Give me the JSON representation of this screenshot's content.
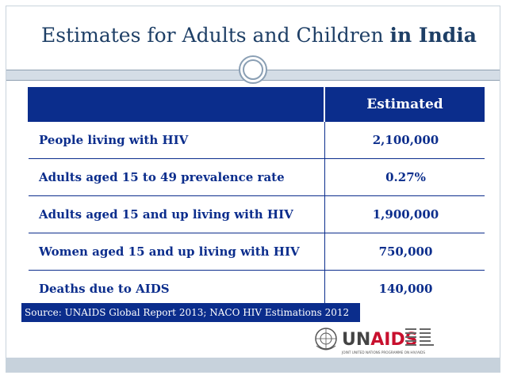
{
  "title": {
    "main": "Estimates for Adults and Children",
    "bold": "in India"
  },
  "table": {
    "header": {
      "label_column": "",
      "value_column": "Estimated"
    },
    "rows": [
      {
        "label": "People living with HIV",
        "value": "2,100,000"
      },
      {
        "label": "Adults aged 15 to 49 prevalence rate",
        "value": "0.27%"
      },
      {
        "label": "Adults aged 15 and up living with HIV",
        "value": "1,900,000"
      },
      {
        "label": "Women aged 15 and up living with HIV",
        "value": "750,000"
      },
      {
        "label": "Deaths due to AIDS",
        "value": "140,000"
      }
    ]
  },
  "source": "Source: UNAIDS Global Report 2013; NACO HIV Estimations 2012",
  "logo": {
    "name": "UNAIDS",
    "tagline": "JOINT UNITED NATIONS PROGRAMME ON HIV/AIDS"
  },
  "colors": {
    "navy": "#0b2d8c",
    "title": "#1e3f66",
    "accent_red": "#c8102e"
  }
}
